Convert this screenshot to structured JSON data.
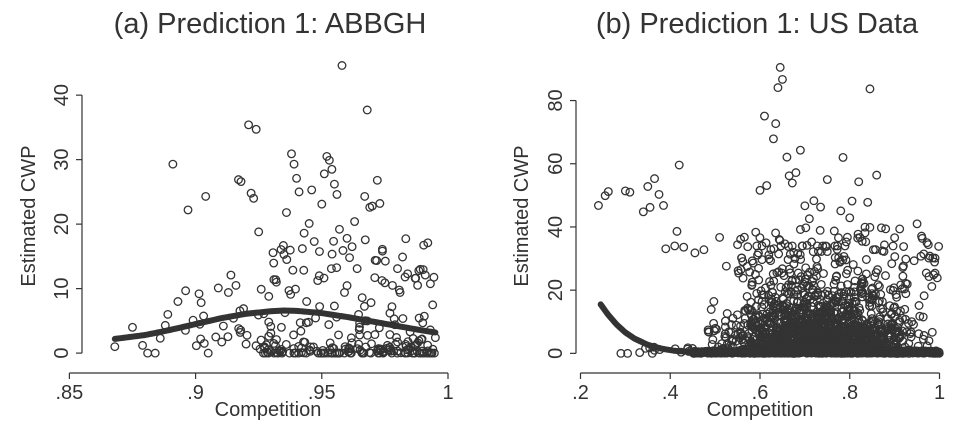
{
  "chart_data": [
    {
      "type": "scatter",
      "title": "(a) Prediction 1: ABBGH",
      "xlabel": "Competition",
      "ylabel": "Estimated CWP",
      "xlim": [
        0.855,
        1.0
      ],
      "ylim": [
        -2,
        47
      ],
      "xticks": [
        0.85,
        0.9,
        0.95,
        1.0
      ],
      "xtick_labels": [
        ".85",
        ".9",
        ".95",
        "1"
      ],
      "yticks": [
        0,
        10,
        20,
        30,
        40
      ],
      "ytick_labels": [
        "0",
        "10",
        "20",
        "30",
        "40"
      ],
      "grid": false,
      "legend": "none",
      "scatter_seed": 7,
      "fit_line": {
        "x": [
          0.868,
          0.88,
          0.89,
          0.9,
          0.91,
          0.92,
          0.93,
          0.935,
          0.94,
          0.95,
          0.96,
          0.97,
          0.98,
          0.99,
          0.995
        ],
        "y": [
          2.2,
          2.8,
          3.6,
          4.5,
          5.4,
          6.1,
          6.5,
          6.6,
          6.55,
          6.2,
          5.6,
          4.9,
          4.2,
          3.5,
          3.2
        ]
      },
      "points": [
        [
          0.868,
          1.0
        ],
        [
          0.875,
          4.0
        ],
        [
          0.879,
          1.2
        ],
        [
          0.881,
          0.0
        ],
        [
          0.884,
          0.0
        ],
        [
          0.886,
          2.3
        ],
        [
          0.888,
          4.3
        ],
        [
          0.889,
          6.0
        ],
        [
          0.891,
          29.3
        ],
        [
          0.893,
          8.0
        ],
        [
          0.897,
          22.2
        ],
        [
          0.899,
          5.1
        ],
        [
          0.902,
          2.2
        ],
        [
          0.904,
          24.3
        ],
        [
          0.905,
          0.0
        ],
        [
          0.908,
          2.5
        ],
        [
          0.909,
          10.1
        ],
        [
          0.911,
          4.2
        ],
        [
          0.913,
          9.4
        ],
        [
          0.914,
          12.1
        ],
        [
          0.915,
          5.4
        ],
        [
          0.916,
          10.5
        ],
        [
          0.917,
          26.9
        ],
        [
          0.918,
          26.6
        ],
        [
          0.919,
          6.9
        ],
        [
          0.92,
          1.4
        ],
        [
          0.921,
          35.4
        ],
        [
          0.922,
          24.8
        ],
        [
          0.923,
          24.0
        ],
        [
          0.924,
          34.7
        ],
        [
          0.925,
          18.8
        ],
        [
          0.926,
          9.9
        ],
        [
          0.927,
          6.1
        ],
        [
          0.928,
          1.3
        ],
        [
          0.929,
          8.8
        ],
        [
          0.93,
          0.2
        ],
        [
          0.931,
          1.5
        ],
        [
          0.932,
          11.0
        ],
        [
          0.934,
          4.0
        ],
        [
          0.935,
          15.3
        ],
        [
          0.936,
          21.8
        ],
        [
          0.937,
          9.7
        ],
        [
          0.938,
          30.9
        ],
        [
          0.939,
          29.3
        ],
        [
          0.94,
          27.1
        ],
        [
          0.941,
          25.0
        ],
        [
          0.942,
          0.8
        ],
        [
          0.943,
          18.6
        ],
        [
          0.944,
          8.0
        ],
        [
          0.945,
          20.1
        ],
        [
          0.946,
          25.3
        ],
        [
          0.947,
          17.3
        ],
        [
          0.948,
          0.3
        ],
        [
          0.949,
          12.0
        ],
        [
          0.95,
          23.1
        ],
        [
          0.951,
          27.8
        ],
        [
          0.952,
          30.5
        ],
        [
          0.953,
          29.9
        ],
        [
          0.954,
          28.5
        ],
        [
          0.955,
          26.2
        ],
        [
          0.956,
          24.6
        ],
        [
          0.957,
          19.2
        ],
        [
          0.958,
          44.6
        ],
        [
          0.959,
          9.4
        ],
        [
          0.96,
          17.8
        ],
        [
          0.961,
          14.8
        ],
        [
          0.962,
          16.5
        ],
        [
          0.963,
          20.4
        ],
        [
          0.964,
          13.1
        ],
        [
          0.965,
          2.8
        ],
        [
          0.966,
          8.6
        ],
        [
          0.967,
          24.3
        ],
        [
          0.968,
          37.7
        ],
        [
          0.969,
          22.6
        ],
        [
          0.97,
          22.8
        ],
        [
          0.971,
          11.7
        ],
        [
          0.972,
          26.8
        ],
        [
          0.973,
          23.2
        ],
        [
          0.974,
          16.1
        ],
        [
          0.975,
          10.9
        ],
        [
          0.976,
          1.2
        ],
        [
          0.977,
          6.2
        ],
        [
          0.978,
          10.5
        ],
        [
          0.979,
          4.4
        ],
        [
          0.98,
          13.1
        ],
        [
          0.981,
          9.4
        ],
        [
          0.982,
          14.9
        ],
        [
          0.983,
          11.8
        ],
        [
          0.984,
          12.3
        ],
        [
          0.985,
          3.3
        ],
        [
          0.986,
          0.4
        ],
        [
          0.987,
          11.6
        ],
        [
          0.988,
          1.6
        ],
        [
          0.989,
          13.0
        ],
        [
          0.99,
          4.7
        ],
        [
          0.991,
          12.1
        ],
        [
          0.992,
          17.1
        ],
        [
          0.993,
          3.6
        ],
        [
          0.994,
          0.6
        ],
        [
          0.995,
          2.4
        ]
      ]
    },
    {
      "type": "scatter",
      "title": "(b) Prediction 1: US Data",
      "xlabel": "Competition",
      "ylabel": "Estimated CWP",
      "xlim": [
        0.19,
        1.01
      ],
      "ylim": [
        -4,
        96
      ],
      "xticks": [
        0.2,
        0.4,
        0.6,
        0.8,
        1.0
      ],
      "xtick_labels": [
        ".2",
        ".4",
        ".6",
        ".8",
        "1"
      ],
      "yticks": [
        0,
        20,
        40,
        60,
        80
      ],
      "ytick_labels": [
        "0",
        "20",
        "40",
        "60",
        "80"
      ],
      "grid": false,
      "legend": "none",
      "scatter_seed": 11,
      "fit_line": {
        "x": [
          0.245,
          0.26,
          0.28,
          0.3,
          0.32,
          0.35,
          0.38,
          0.41,
          0.45,
          0.5,
          0.6,
          0.7,
          0.8,
          0.9,
          1.0
        ],
        "y": [
          15.5,
          12.5,
          9.2,
          6.6,
          4.7,
          2.7,
          1.5,
          0.8,
          0.4,
          0.2,
          0.1,
          0.05,
          0.05,
          0.05,
          0.05
        ]
      },
      "points": [
        [
          0.24,
          46.8
        ],
        [
          0.255,
          49.9
        ],
        [
          0.262,
          51.2
        ],
        [
          0.29,
          0.0
        ],
        [
          0.3,
          51.4
        ],
        [
          0.31,
          51.0
        ],
        [
          0.305,
          0.0
        ],
        [
          0.34,
          44.8
        ],
        [
          0.35,
          52.8
        ],
        [
          0.355,
          46.2
        ],
        [
          0.36,
          0.0
        ],
        [
          0.365,
          55.3
        ],
        [
          0.375,
          50.3
        ],
        [
          0.385,
          46.8
        ],
        [
          0.39,
          33.1
        ],
        [
          0.41,
          34.0
        ],
        [
          0.415,
          38.6
        ],
        [
          0.42,
          59.6
        ],
        [
          0.43,
          33.6
        ],
        [
          0.455,
          31.8
        ],
        [
          0.475,
          32.8
        ],
        [
          0.51,
          36.7
        ],
        [
          0.525,
          27.6
        ],
        [
          0.55,
          34.4
        ],
        [
          0.6,
          51.6
        ],
        [
          0.61,
          75.1
        ],
        [
          0.615,
          53.1
        ],
        [
          0.63,
          67.9
        ],
        [
          0.635,
          72.7
        ],
        [
          0.64,
          84.1
        ],
        [
          0.645,
          90.5
        ],
        [
          0.65,
          86.7
        ],
        [
          0.66,
          62.1
        ],
        [
          0.665,
          56.2
        ],
        [
          0.672,
          53.9
        ],
        [
          0.68,
          57.2
        ],
        [
          0.69,
          64.3
        ],
        [
          0.7,
          46.7
        ],
        [
          0.71,
          42.6
        ],
        [
          0.72,
          48.3
        ],
        [
          0.735,
          46.3
        ],
        [
          0.75,
          55.0
        ],
        [
          0.78,
          45.1
        ],
        [
          0.785,
          62.0
        ],
        [
          0.8,
          42.9
        ],
        [
          0.805,
          48.2
        ],
        [
          0.82,
          54.3
        ],
        [
          0.84,
          47.8
        ],
        [
          0.845,
          83.7
        ],
        [
          0.86,
          56.4
        ],
        [
          0.88,
          39.4
        ],
        [
          0.9,
          36.6
        ],
        [
          0.92,
          33.8
        ],
        [
          0.95,
          41.0
        ],
        [
          0.96,
          37.1
        ],
        [
          0.975,
          34.4
        ],
        [
          0.985,
          30.2
        ],
        [
          0.99,
          25.4
        ],
        [
          0.995,
          23.9
        ]
      ]
    }
  ]
}
